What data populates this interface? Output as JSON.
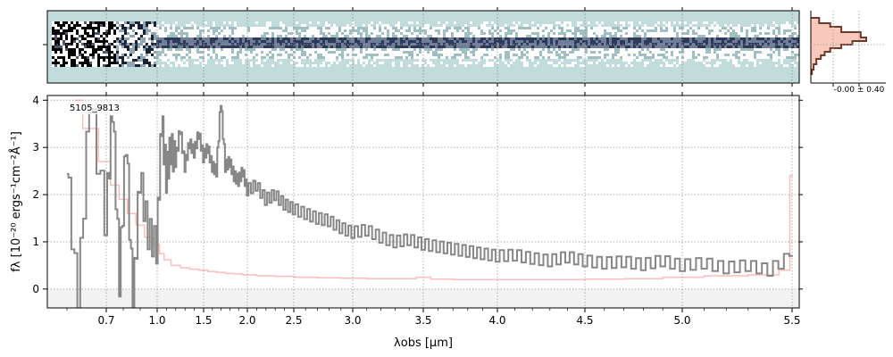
{
  "figure": {
    "object_id": "5105_9813",
    "hist_label": "-0.00 ± 0.40",
    "colors": {
      "spectrum": "#878787",
      "error": "#ff8f8f",
      "hist_line": "#6b3a2a",
      "hist_fill": "#f8c8bc",
      "twod_bg": "#c2dcdb",
      "twod_dark": "#2e3a5c"
    }
  },
  "chart_data": {
    "type": "line",
    "xlabel": "λobs [μm]",
    "ylabel": "fλ [10⁻²⁰ ergs⁻¹cm⁻²Å⁻¹]",
    "x_scale": "nonlinear (compressed toward red)",
    "xlim": [
      0.55,
      5.52
    ],
    "ylim": [
      -0.4,
      4.1
    ],
    "x_ticks": [
      "0.7",
      "1.0",
      "1.5",
      "2.0",
      "2.5",
      "3.0",
      "3.5",
      "4.0",
      "4.5",
      "5.0",
      "5.5"
    ],
    "y_ticks": [
      "0",
      "1",
      "2",
      "3",
      "4"
    ],
    "grid": true,
    "series": [
      {
        "kind": "flux",
        "x": [
          0.6,
          0.63,
          0.66,
          0.7,
          0.74,
          0.78,
          0.82,
          0.86,
          0.9,
          0.95,
          1.0,
          1.05,
          1.1,
          1.15,
          1.2,
          1.25,
          1.3,
          1.35,
          1.4,
          1.45,
          1.5,
          1.55,
          1.6,
          1.65,
          1.7,
          1.75,
          1.8,
          1.85,
          1.9,
          1.95,
          2.0,
          2.1,
          2.2,
          2.3,
          2.4,
          2.5,
          2.6,
          2.7,
          2.8,
          2.9,
          3.0,
          3.1,
          3.2,
          3.3,
          3.4,
          3.5,
          3.6,
          3.7,
          3.8,
          3.9,
          4.0,
          4.1,
          4.2,
          4.3,
          4.4,
          4.5,
          4.6,
          4.7,
          4.8,
          4.9,
          5.0,
          5.1,
          5.2,
          5.3,
          5.4,
          5.5
        ],
        "y": [
          2.8,
          -0.4,
          4.1,
          1.5,
          3.9,
          0.2,
          3.2,
          -0.4,
          2.4,
          1.2,
          0.9,
          3.6,
          2.4,
          3.0,
          2.7,
          3.4,
          2.6,
          3.1,
          2.9,
          3.3,
          2.8,
          3.0,
          2.6,
          2.5,
          4.0,
          2.6,
          2.7,
          2.4,
          2.3,
          2.5,
          2.1,
          2.2,
          1.9,
          2.0,
          1.8,
          1.7,
          1.6,
          1.5,
          1.45,
          1.3,
          1.2,
          1.25,
          1.1,
          1.0,
          1.05,
          0.95,
          0.9,
          0.85,
          0.8,
          0.75,
          0.7,
          0.72,
          0.65,
          0.6,
          0.68,
          0.6,
          0.55,
          0.58,
          0.52,
          0.6,
          0.5,
          0.55,
          0.45,
          0.5,
          0.4,
          0.7
        ]
      },
      {
        "kind": "error",
        "x": [
          0.62,
          0.66,
          0.7,
          0.75,
          0.8,
          0.85,
          0.9,
          0.95,
          1.0,
          1.05,
          1.1,
          1.2,
          1.3,
          1.4,
          1.5,
          1.6,
          1.7,
          1.8,
          1.9,
          2.0,
          2.2,
          2.4,
          2.6,
          2.8,
          3.0,
          3.2,
          3.4,
          3.5,
          3.6,
          3.8,
          4.0,
          4.2,
          4.4,
          4.6,
          4.8,
          5.0,
          5.2,
          5.4,
          5.48,
          5.5
        ],
        "y": [
          4.0,
          3.4,
          2.7,
          2.2,
          1.9,
          1.6,
          1.35,
          1.1,
          0.95,
          0.75,
          0.62,
          0.5,
          0.45,
          0.42,
          0.4,
          0.37,
          0.35,
          0.33,
          0.32,
          0.3,
          0.28,
          0.27,
          0.25,
          0.24,
          0.23,
          0.22,
          0.22,
          0.25,
          0.21,
          0.2,
          0.2,
          0.2,
          0.2,
          0.21,
          0.22,
          0.25,
          0.28,
          0.3,
          0.4,
          2.4
        ]
      }
    ]
  }
}
